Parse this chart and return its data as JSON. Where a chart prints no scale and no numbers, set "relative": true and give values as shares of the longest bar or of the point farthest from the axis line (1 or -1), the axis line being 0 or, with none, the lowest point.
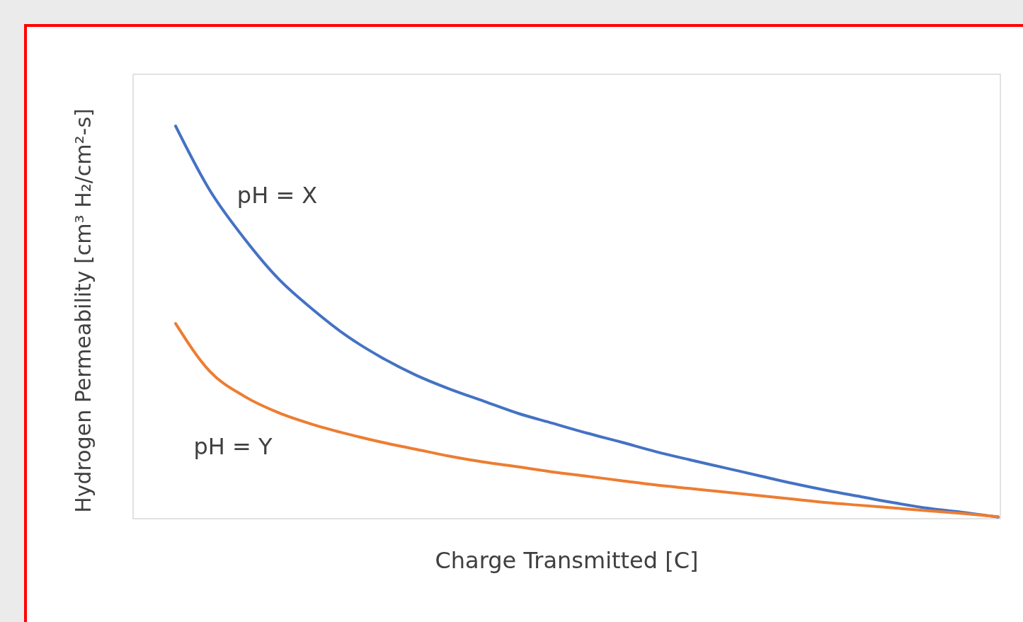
{
  "chart_data": {
    "type": "line",
    "relative": true,
    "xlabel": "Charge Transmitted [C]",
    "ylabel": "Hydrogen Permeability [cm³ H₂/cm²-s]",
    "categories": [
      null,
      null,
      null,
      null,
      null,
      null,
      null,
      null,
      null,
      null,
      null,
      null,
      null,
      null,
      null,
      null,
      null,
      null,
      null,
      null,
      null,
      null,
      null,
      null,
      null
    ],
    "marker": "none",
    "line_style": "solid",
    "series": [
      {
        "name": "pH = X",
        "color": "#4472c4",
        "values": [
          1,
          0.836,
          0.714,
          0.611,
          0.533,
          0.465,
          0.411,
          0.366,
          0.33,
          0.299,
          0.268,
          0.243,
          0.218,
          0.195,
          0.171,
          0.15,
          0.13,
          0.11,
          0.09,
          0.072,
          0.056,
          0.04,
          0.026,
          0.016,
          0.004
        ]
      },
      {
        "name": "pH = Y",
        "color": "#ed7d31",
        "values": [
          0.497,
          0.375,
          0.312,
          0.27,
          0.24,
          0.216,
          0.195,
          0.177,
          0.159,
          0.144,
          0.132,
          0.119,
          0.108,
          0.097,
          0.086,
          0.077,
          0.068,
          0.059,
          0.05,
          0.041,
          0.034,
          0.027,
          0.02,
          0.013,
          0.005
        ]
      }
    ]
  }
}
